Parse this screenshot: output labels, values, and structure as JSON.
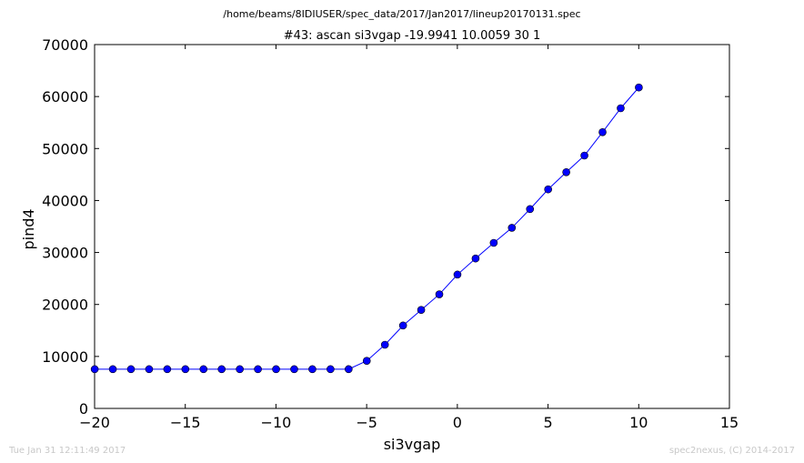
{
  "figure": {
    "suptitle": "/home/beams/8IDIUSER/spec_data/2017/Jan2017/lineup20170131.spec",
    "timestamp": "Tue Jan 31 12:11:49 2017",
    "credit": "spec2nexus, (C) 2014-2017"
  },
  "chart_data": {
    "type": "line",
    "title": "#43: ascan  si3vgap -19.9941 10.0059  30 1",
    "xlabel": "si3vgap",
    "ylabel": "pind4",
    "xlim": [
      -20,
      15
    ],
    "ylim": [
      0,
      70000
    ],
    "xticks": [
      -20,
      -15,
      -10,
      -5,
      0,
      5,
      10,
      15
    ],
    "xtick_labels": [
      "−20",
      "−15",
      "−10",
      "−5",
      "0",
      "5",
      "10",
      "15"
    ],
    "yticks": [
      0,
      10000,
      20000,
      30000,
      40000,
      50000,
      60000,
      70000
    ],
    "ytick_labels": [
      "0",
      "10000",
      "20000",
      "30000",
      "40000",
      "50000",
      "60000",
      "70000"
    ],
    "grid": false,
    "legend": "none",
    "line_color": "#0000ff",
    "marker": "circle",
    "series": [
      {
        "x": [
          -19.9941,
          -18.9941,
          -17.9941,
          -16.9941,
          -15.9941,
          -14.9941,
          -13.9941,
          -12.9941,
          -11.9941,
          -10.9941,
          -9.9941,
          -8.9941,
          -7.9941,
          -6.9941,
          -5.9941,
          -4.9941,
          -3.9941,
          -2.9941,
          -1.9941,
          -0.9941,
          0.0059,
          1.0059,
          2.0059,
          3.0059,
          4.0059,
          5.0059,
          6.0059,
          7.0059,
          8.0059,
          9.0059,
          10.0059
        ],
        "y": [
          7550,
          7550,
          7550,
          7550,
          7550,
          7550,
          7550,
          7550,
          7550,
          7550,
          7550,
          7550,
          7550,
          7550,
          7550,
          9150,
          12250,
          15950,
          18950,
          21950,
          25750,
          28850,
          31850,
          34750,
          38350,
          42150,
          45450,
          48650,
          53150,
          57750,
          61750
        ]
      }
    ]
  }
}
